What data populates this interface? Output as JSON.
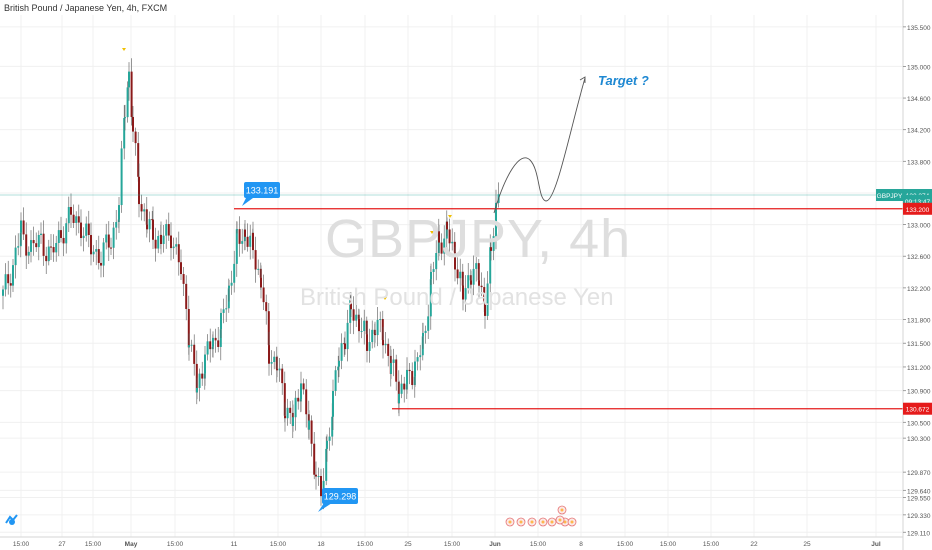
{
  "header": {
    "symbol_title": "British Pound / Japanese Yen, 4h, FXCM"
  },
  "watermark": {
    "main": "GBPJPY, 4h",
    "sub": "British Pound / Japanese Yen"
  },
  "chart_data": {
    "type": "candlestick",
    "title": "British Pound / Japanese Yen, 4h, FXCM",
    "ylim": [
      129.05,
      135.65
    ],
    "y_ticks": [
      "135.500",
      "135.000",
      "134.600",
      "134.200",
      "133.800",
      "133.400",
      "133.000",
      "132.600",
      "132.200",
      "131.800",
      "131.500",
      "131.200",
      "130.900",
      "130.500",
      "130.300",
      "129.870",
      "129.640",
      "129.550",
      "129.330",
      "129.110"
    ],
    "x_ticks": [
      "15:00",
      "27",
      "15:00",
      "May",
      "15:00",
      "11",
      "15:00",
      "18",
      "15:00",
      "25",
      "15:00",
      "Jun",
      "15:00",
      "8",
      "15:00",
      "15:00",
      "15:00",
      "22",
      "25",
      "Jul"
    ],
    "price_labels": [
      {
        "name": "GBPJPY",
        "value": "133.374",
        "price": 133.374,
        "color": "#26a69a"
      },
      {
        "name": "",
        "value": "09:13:47",
        "price": 133.3,
        "color": "#26a69a"
      },
      {
        "name": "",
        "value": "133.200",
        "price": 133.2,
        "color": "#e51b1b"
      },
      {
        "name": "",
        "value": "130.672",
        "price": 130.672,
        "color": "#e51b1b"
      }
    ],
    "horizontal_lines": [
      {
        "price": 133.2,
        "color": "#e51b1b",
        "from": "May 11"
      },
      {
        "price": 130.672,
        "color": "#e51b1b",
        "from": "May 24"
      },
      {
        "price": 133.374,
        "color": "#26a69a"
      }
    ],
    "annotations": [
      {
        "text": "133.191",
        "price": 133.191,
        "color": "#2196f3"
      },
      {
        "text": "129.298",
        "price": 129.298,
        "color": "#2196f3"
      },
      {
        "text": "Target ?",
        "color": "#1e88d2"
      }
    ],
    "colors": {
      "up": "#26a69a",
      "down": "#8b1a1a",
      "grid": "#f0f0f0"
    }
  }
}
